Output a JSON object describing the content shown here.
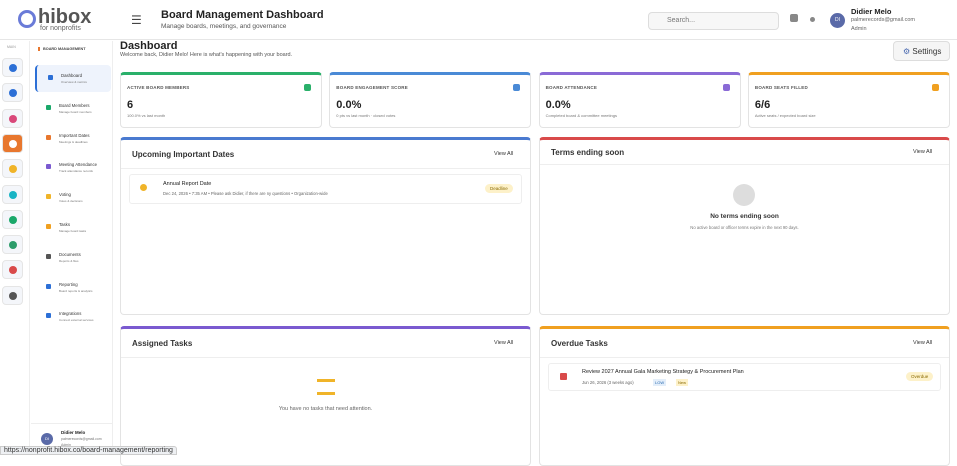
{
  "logo": {
    "name": "hibox",
    "tagline": "for nonprofits"
  },
  "header": {
    "title": "Board Management Dashboard",
    "subtitle": "Manage boards, meetings, and governance",
    "search": "Search...",
    "user": {
      "name": "Didier Melo",
      "email": "palmerecords@gmail.com",
      "role": "Admin",
      "initials": "DI"
    }
  },
  "rail": {
    "label": "MAIN"
  },
  "sidebar": {
    "section": "BOARD MANAGEMENT",
    "items": [
      {
        "title": "Dashboard",
        "sub": "Overview & metrics"
      },
      {
        "title": "Board Members",
        "sub": "Manage board members"
      },
      {
        "title": "Important Dates",
        "sub": "Meetings & deadlines"
      },
      {
        "title": "Meeting Attendance",
        "sub": "Track attendance records"
      },
      {
        "title": "Voting",
        "sub": "Votes & decisions"
      },
      {
        "title": "Tasks",
        "sub": "Manage board tasks"
      },
      {
        "title": "Documents",
        "sub": "Reports & files"
      },
      {
        "title": "Reporting",
        "sub": "Board reports & analytics"
      },
      {
        "title": "Integrations",
        "sub": "Connect external services"
      }
    ],
    "footer": {
      "name": "Didier Melo",
      "email": "palmerecords@gmail.com",
      "role": "Admin",
      "initials": "DI"
    }
  },
  "main": {
    "title": "Dashboard",
    "welcome": "Welcome back, Didier Melo! Here is what's happening with your board.",
    "settings": "Settings"
  },
  "stats": [
    {
      "label": "ACTIVE BOARD MEMBERS",
      "value": "6",
      "note": "100.0% vs last month"
    },
    {
      "label": "BOARD ENGAGEMENT SCORE",
      "value": "0.0%",
      "note": "0 pts vs last month · closed votes"
    },
    {
      "label": "BOARD ATTENDANCE",
      "value": "0.0%",
      "note": "Completed board & committee meetings"
    },
    {
      "label": "BOARD SEATS FILLED",
      "value": "6/6",
      "note": "Active seats / expected board size"
    }
  ],
  "panels": {
    "dates": {
      "title": "Upcoming Important Dates",
      "link": "View All",
      "item": {
        "title": "Annual Report Date",
        "meta": "Dec 24, 2026 • 7:35 AM • Please ask Didier, if there are ny questions • Organization-wide",
        "badge": "Deadline"
      }
    },
    "terms": {
      "title": "Terms ending soon",
      "link": "View All",
      "empty": "No terms ending soon",
      "empty_sub": "No active board or officer terms expire in the next 90 days."
    },
    "assigned": {
      "title": "Assigned Tasks",
      "link": "View All",
      "empty": "You have no tasks that need attention."
    },
    "overdue": {
      "title": "Overdue Tasks",
      "link": "View All",
      "item": {
        "title": "Review 2027 Annual Gala Marketing Strategy & Procurement Plan",
        "date": "Jun 26, 2026 (3 weeks ago)",
        "priority": "LOW",
        "status": "New",
        "badge": "Overdue"
      }
    }
  },
  "status_bar": "https://nonprofit.hibox.co/board-management/reporting"
}
